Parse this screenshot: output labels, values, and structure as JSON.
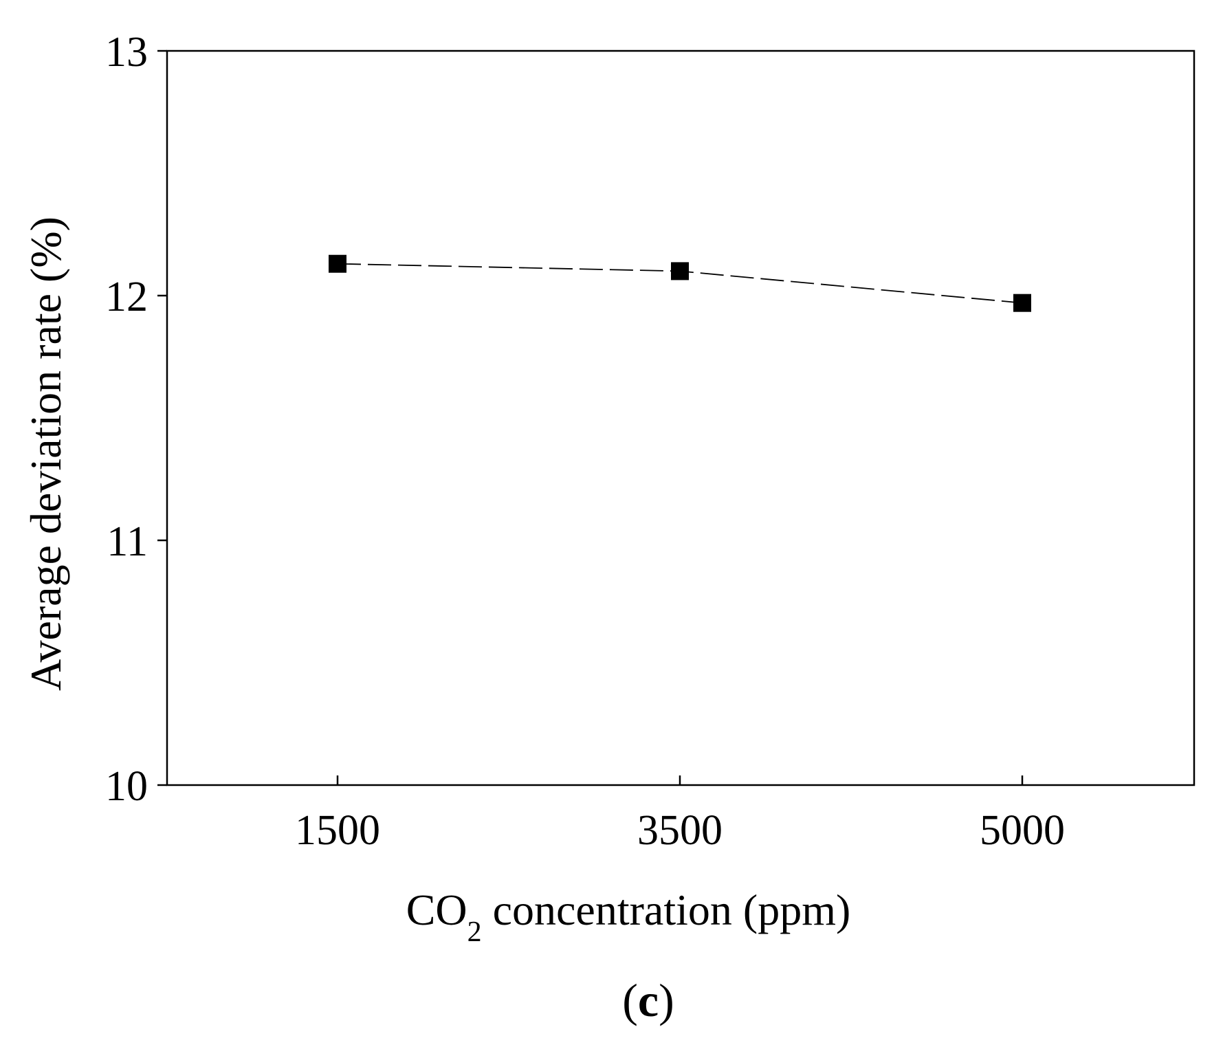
{
  "chart_data": {
    "type": "line",
    "title": "",
    "xlabel": "CO2 concentration (ppm)",
    "xlabel_parts": {
      "main": "CO",
      "subscript": "2",
      "rest": " concentration (ppm)"
    },
    "ylabel": "Average deviation rate (%)",
    "categories": [
      "1500",
      "3500",
      "5000"
    ],
    "series": [
      {
        "values": [
          12.13,
          12.1,
          11.97
        ]
      }
    ],
    "ylim": [
      10,
      13
    ],
    "yticks": [
      "10",
      "11",
      "12",
      "13"
    ],
    "grid": false,
    "legend": "none",
    "marker": "square",
    "line_style": "dashed",
    "colors": {
      "line": "#000000",
      "marker": "#000000",
      "axes": "#000000"
    }
  },
  "panel_label": {
    "open": "(",
    "letter": "c",
    "close": ")"
  }
}
